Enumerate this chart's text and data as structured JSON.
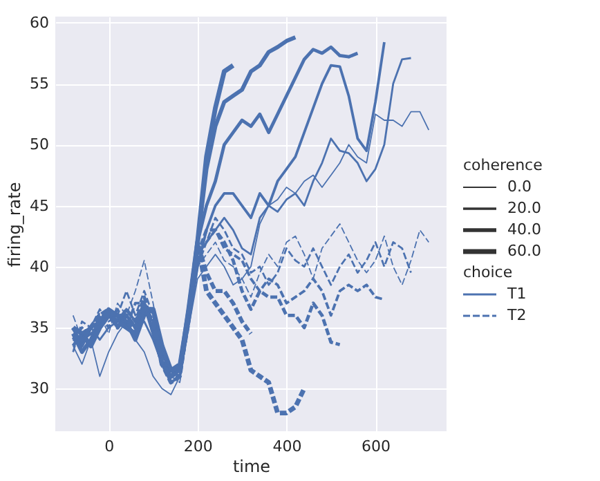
{
  "chart_data": {
    "type": "line",
    "xlabel": "time",
    "ylabel": "firing_rate",
    "legend_title": "coherence",
    "legend": "right",
    "grid": true,
    "annotations": [
      "0.0",
      "20.0",
      "40.0",
      "60.0",
      "choice"
    ],
    "x": [
      -80,
      -60,
      -40,
      -20,
      0,
      20,
      40,
      60,
      80,
      100,
      120,
      140,
      160,
      180,
      200,
      220,
      240,
      260,
      280,
      300,
      320,
      340,
      360,
      380,
      400,
      420,
      440,
      460,
      480,
      500,
      520,
      540,
      560,
      580,
      600,
      620,
      640,
      660,
      680,
      700,
      720
    ],
    "xlim": [
      -120,
      760
    ],
    "xticks": [
      0,
      200,
      400,
      600
    ],
    "ylim": [
      26.5,
      60.5
    ],
    "yticks": [
      30,
      35,
      40,
      45,
      50,
      55,
      60
    ],
    "series": [
      {
        "name": "T1",
        "line_style": "solid",
        "color": "#4c72b0",
        "values": [
          33.5,
          32,
          34,
          31,
          33,
          34.5,
          35.5,
          34,
          33,
          31,
          30,
          29.5,
          31,
          35,
          39,
          40,
          41,
          40,
          38.5,
          39,
          40,
          43.5,
          45,
          45.5,
          46.5,
          46,
          47,
          47.5,
          46.5,
          47.5,
          48.5,
          50,
          49,
          48.5,
          52.5,
          52,
          52,
          51.5,
          52.7,
          52.7,
          51.2
        ]
      },
      {
        "line_style": "solid",
        "color": "#4c72b0",
        "values": [
          34,
          33.5,
          35,
          34,
          35,
          35.5,
          36,
          35,
          35.5,
          34,
          32,
          31,
          31.5,
          36,
          41,
          42,
          43,
          44,
          43,
          41.5,
          41,
          44,
          45,
          44.5,
          45.5,
          46,
          45,
          47,
          48.5,
          50.5,
          49.5,
          49.3,
          48.5,
          47,
          48,
          50,
          55,
          57,
          57.1,
          null,
          null
        ]
      },
      {
        "line_style": "solid",
        "color": "#4c72b0",
        "values": [
          34.5,
          34,
          34.5,
          35,
          36,
          35,
          36.5,
          35.5,
          36.5,
          35,
          32,
          30.5,
          31,
          35.5,
          40,
          43,
          45,
          46,
          46,
          45,
          44,
          46,
          45,
          47,
          48,
          49,
          51,
          53,
          55,
          56.5,
          56.4,
          54,
          50.5,
          49.5,
          53.5,
          58.4,
          null,
          null,
          null,
          null,
          null
        ]
      },
      {
        "line_style": "solid",
        "color": "#4c72b0",
        "values": [
          35,
          33.5,
          35,
          35.5,
          36.5,
          35,
          36,
          35,
          37,
          34.5,
          32,
          31,
          32,
          36,
          42,
          45,
          47,
          50,
          51,
          52,
          51.5,
          52.5,
          51,
          52.5,
          54,
          55.5,
          57,
          57.8,
          57.5,
          58,
          57.3,
          57.2,
          57.5,
          null,
          null,
          null,
          null,
          null,
          null,
          null,
          null
        ]
      },
      {
        "line_style": "solid",
        "color": "#4c72b0",
        "values": [
          34.5,
          33,
          34,
          35.5,
          36.5,
          36,
          35.5,
          34,
          36,
          36.5,
          33,
          31.5,
          32,
          36.5,
          42,
          48,
          51.5,
          53.5,
          54,
          54.5,
          56,
          56.5,
          57.6,
          58,
          58.5,
          58.8,
          null,
          null,
          null,
          null,
          null,
          null,
          null,
          null,
          null,
          null,
          null,
          null,
          null,
          null,
          null
        ]
      },
      {
        "line_style": "solid",
        "color": "#4c72b0",
        "values": [
          35,
          34.5,
          33.5,
          35,
          36,
          36,
          35,
          34.5,
          36.5,
          36.5,
          33.5,
          31.5,
          31.5,
          36.5,
          42,
          49,
          53,
          56,
          56.5,
          null,
          null,
          null,
          null,
          null,
          null,
          null,
          null,
          null,
          null,
          null,
          null,
          null,
          null,
          null,
          null,
          null,
          null,
          null,
          null,
          null,
          null
        ]
      },
      {
        "name": "T2",
        "line_style": "dashed",
        "color": "#4c72b0",
        "values": [
          36,
          34,
          35,
          36,
          34.5,
          37,
          36,
          38,
          40.5,
          37,
          33,
          31,
          30.5,
          35,
          40,
          41,
          42,
          40.5,
          40,
          39,
          37.5,
          39.5,
          41,
          40,
          42,
          42.5,
          41,
          39,
          41.5,
          42.5,
          43.5,
          42,
          40.5,
          39.5,
          40.5,
          42.5,
          40,
          38.5,
          40.5,
          43,
          42
        ]
      },
      {
        "line_style": "dashed",
        "color": "#4c72b0",
        "values": [
          33,
          35.5,
          35,
          36.5,
          35.5,
          36,
          38,
          36,
          38,
          36,
          32.5,
          31,
          31,
          35,
          40,
          42,
          44,
          43,
          41.5,
          41,
          39.5,
          40,
          38.5,
          39.5,
          41.5,
          40.5,
          40,
          41.5,
          40,
          38.5,
          40,
          41,
          39.5,
          40.5,
          42,
          40,
          42,
          41.5,
          39.5,
          null,
          null
        ]
      },
      {
        "line_style": "dashed",
        "color": "#4c72b0",
        "values": [
          34,
          35,
          34,
          36,
          35,
          36.5,
          35,
          37,
          37,
          35.5,
          33,
          31.5,
          31,
          35.5,
          41,
          42,
          43,
          41.5,
          41,
          40.5,
          39,
          38,
          39,
          38.5,
          37,
          37.5,
          38,
          39,
          38,
          36,
          38,
          38.5,
          38,
          38.5,
          37.5,
          37.3,
          null,
          null,
          null,
          null,
          null
        ]
      },
      {
        "line_style": "dashed",
        "color": "#4c72b0",
        "values": [
          33.5,
          34.5,
          35,
          35,
          36,
          35.5,
          36.5,
          35.5,
          37.5,
          35,
          32.5,
          31,
          31.5,
          36,
          41,
          43,
          43,
          42,
          40.5,
          38,
          36.5,
          38,
          37.5,
          37.5,
          36,
          36,
          35,
          37,
          36,
          33.8,
          33.6,
          null,
          null,
          null,
          null,
          null,
          null,
          null,
          null,
          null,
          null
        ]
      },
      {
        "line_style": "dashed",
        "color": "#4c72b0",
        "values": [
          34,
          34.5,
          35,
          36,
          36.5,
          35,
          36,
          35,
          37,
          35,
          32,
          30.5,
          31,
          36,
          42,
          39.5,
          38,
          38,
          37,
          35.5,
          34.5,
          null,
          null,
          null,
          null,
          null,
          null,
          null,
          null,
          null,
          null,
          null,
          null,
          null,
          null,
          null,
          null,
          null,
          null,
          null,
          null
        ]
      },
      {
        "line_style": "dashed",
        "color": "#4c72b0",
        "values": [
          35,
          34,
          35,
          36,
          36,
          35.5,
          35,
          35.5,
          36.5,
          35.5,
          32,
          31,
          31.5,
          36,
          42,
          38,
          37,
          36,
          35,
          34,
          31.5,
          31,
          30.5,
          28,
          28,
          28.5,
          30,
          null,
          null,
          null,
          null,
          null,
          null,
          null,
          null,
          null,
          null,
          null,
          null,
          null,
          null
        ]
      }
    ]
  }
}
